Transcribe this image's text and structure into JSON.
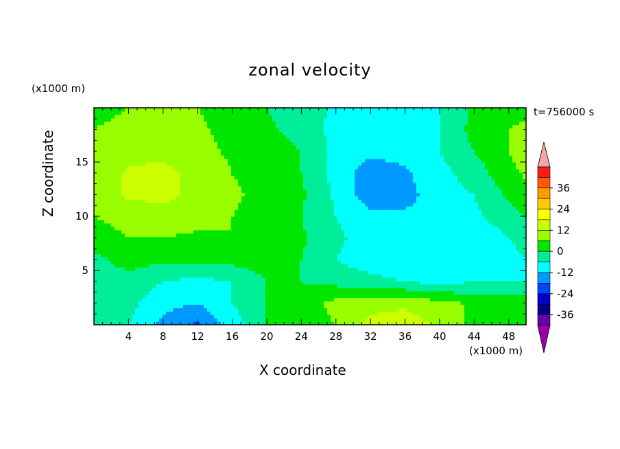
{
  "chart_data": {
    "type": "heatmap",
    "title": "zonal velocity",
    "xlabel": "X coordinate",
    "ylabel": "Z coordinate",
    "x_units": "(x1000 m)",
    "z_units": "(x1000 m)",
    "time_label": "t=756000 s",
    "xlim": [
      0,
      50
    ],
    "ylim": [
      0,
      20
    ],
    "x_ticks": [
      4,
      8,
      12,
      16,
      20,
      24,
      28,
      32,
      36,
      40,
      44,
      48
    ],
    "y_ticks": [
      5,
      10,
      15
    ],
    "colorbar": {
      "ticks": [
        36,
        24,
        12,
        0,
        -12,
        -24,
        -36
      ],
      "levels": [
        48,
        42,
        36,
        30,
        24,
        18,
        12,
        6,
        0,
        -6,
        -12,
        -18,
        -24,
        -30,
        -36,
        -42
      ],
      "colors": [
        "#f4a6a6",
        "#ff1a1a",
        "#ff5a00",
        "#ff9a00",
        "#ffcc00",
        "#ffff00",
        "#ccff00",
        "#99ff00",
        "#00e600",
        "#00ee99",
        "#00ffff",
        "#0099ff",
        "#0044ff",
        "#0000cc",
        "#00008b",
        "#6600aa",
        "#9900aa"
      ],
      "extend": "both"
    },
    "x": [
      0,
      4,
      8,
      12,
      16,
      20,
      24,
      28,
      32,
      36,
      40,
      44,
      48,
      50
    ],
    "z": [
      0,
      2,
      4,
      6,
      8,
      10,
      12,
      14,
      16,
      18,
      20
    ],
    "values": [
      [
        -3,
        -6,
        -14,
        -19,
        -9,
        0,
        2,
        6,
        14,
        15,
        11,
        4,
        2,
        3
      ],
      [
        -2,
        -4,
        -10,
        -12,
        -6,
        0,
        3,
        8,
        10,
        11,
        8,
        5,
        3,
        3
      ],
      [
        -4,
        -3,
        -6,
        -8,
        -6,
        0,
        0,
        -2,
        -4,
        -6,
        -8,
        -6,
        -6,
        -6
      ],
      [
        -2,
        3,
        1,
        2,
        2,
        3,
        0,
        -6,
        -9,
        -11,
        -12,
        -12,
        -8,
        -6
      ],
      [
        3,
        6,
        6,
        5,
        6,
        4,
        1,
        -5,
        -8,
        -10,
        -12,
        -10,
        -6,
        -4
      ],
      [
        6,
        8,
        9,
        8,
        6,
        4,
        0,
        -6,
        -10,
        -11,
        -10,
        -7,
        -3,
        0
      ],
      [
        8,
        13,
        14,
        10,
        7,
        4,
        1,
        -7,
        -16,
        -14,
        -9,
        -6,
        1,
        4
      ],
      [
        8,
        13,
        14,
        10,
        6,
        3,
        0,
        -8,
        -16,
        -13,
        -8,
        -3,
        4,
        7
      ],
      [
        7,
        10,
        10,
        8,
        5,
        3,
        0,
        -8,
        -10,
        -10,
        -6,
        0,
        6,
        9
      ],
      [
        6,
        8,
        8,
        7,
        4,
        1,
        -2,
        -8,
        -10,
        -9,
        -6,
        2,
        6,
        7
      ],
      [
        4,
        6,
        7,
        6,
        3,
        0,
        -3,
        -7,
        -9,
        -8,
        -6,
        1,
        4,
        5
      ]
    ]
  }
}
